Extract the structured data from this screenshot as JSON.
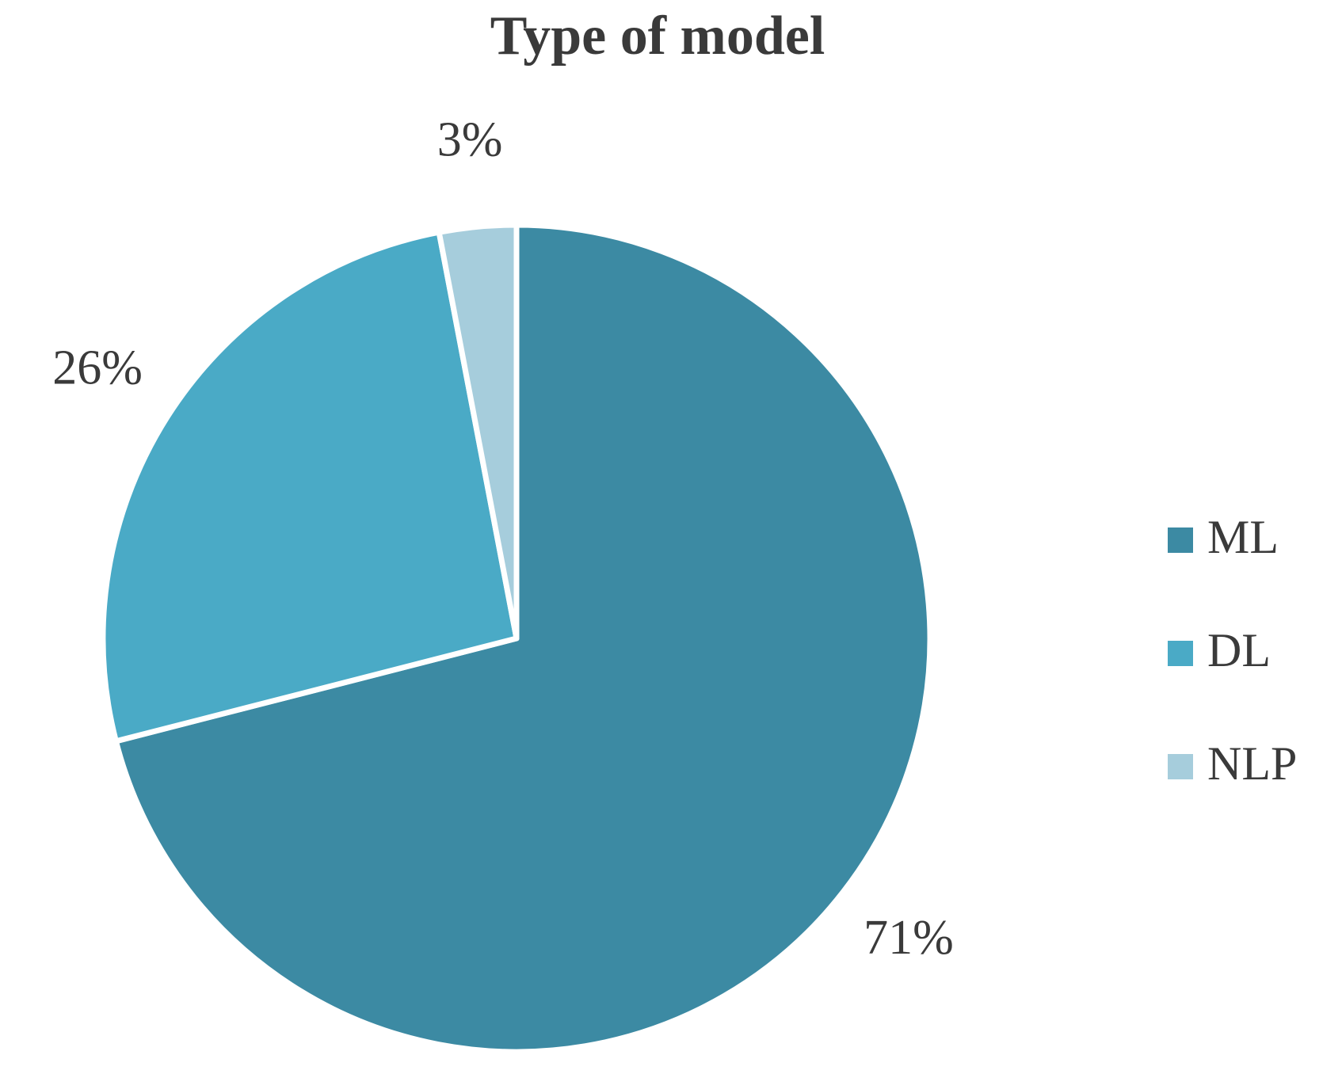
{
  "chart_data": {
    "type": "pie",
    "title": "Type of model",
    "categories": [
      "ML",
      "DL",
      "NLP"
    ],
    "values": [
      71,
      26,
      3
    ],
    "value_labels": [
      "71%",
      "26%",
      "3%"
    ],
    "colors": [
      "#3c8aa3",
      "#4aaac6",
      "#a6cddc"
    ],
    "legend": "right"
  }
}
